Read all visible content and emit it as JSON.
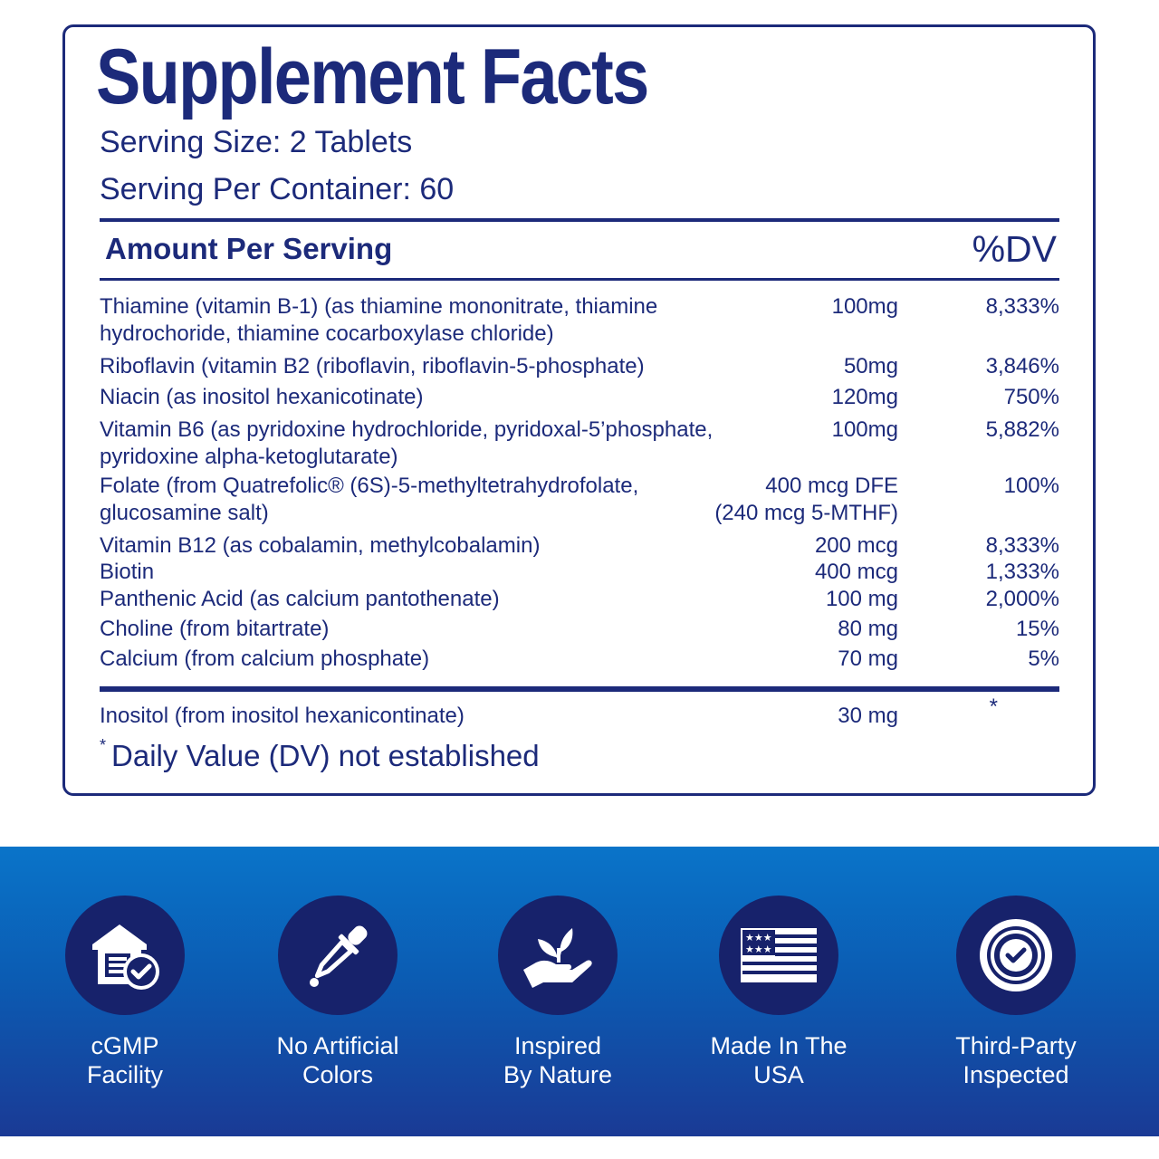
{
  "panel": {
    "title": "Supplement Facts",
    "serving_size": "Serving Size: 2 Tablets",
    "servings_per_container": "Serving Per Container: 60",
    "header_amount": "Amount Per Serving",
    "header_dv": "%DV",
    "nutrients": [
      {
        "name": "Thiamine (vitamin B-1) (as thiamine mononitrate, thiamine\nhydrochoride, thiamine cocarboxylase chloride)",
        "amount": "100mg",
        "dv": "8,333%"
      },
      {
        "name": "Riboflavin (vitamin B2 (riboflavin, riboflavin-5-phosphate)",
        "amount": "50mg",
        "dv": "3,846%"
      },
      {
        "name": "Niacin (as inositol hexanicotinate)",
        "amount": "120mg",
        "dv": "750%"
      },
      {
        "name": "Vitamin B6 (as pyridoxine hydrochloride, pyridoxal-5’phosphate,\npyridoxine alpha-ketoglutarate)",
        "amount": "100mg",
        "dv": "5,882%"
      },
      {
        "name": "Folate (from Quatrefolic® (6S)-5-methyltetrahydrofolate,\nglucosamine salt)",
        "amount": "400 mcg DFE\n(240 mcg 5-MTHF)",
        "dv": "100%"
      },
      {
        "name": "Vitamin B12 (as cobalamin, methylcobalamin)",
        "amount": "200 mcg",
        "dv": "8,333%"
      },
      {
        "name": "Biotin",
        "amount": "400 mcg",
        "dv": "1,333%"
      },
      {
        "name": "Panthenic Acid (as calcium pantothenate)",
        "amount": "100 mg",
        "dv": "2,000%"
      },
      {
        "name": "Choline (from bitartrate)",
        "amount": "80 mg",
        "dv": "15%"
      },
      {
        "name": "Calcium (from calcium phosphate)",
        "amount": "70 mg",
        "dv": "5%"
      },
      {
        "name": "Inositol (from inositol hexanicontinate)",
        "amount": "30 mg",
        "dv": "*"
      }
    ],
    "footnote_star": "*",
    "footnote_text": "Daily Value (DV) not established"
  },
  "badges": [
    {
      "icon": "facility-check-icon",
      "label": "cGMP\nFacility"
    },
    {
      "icon": "dropper-icon",
      "label": "No Artificial\nColors"
    },
    {
      "icon": "plant-hand-icon",
      "label": "Inspired\nBy Nature"
    },
    {
      "icon": "usa-flag-icon",
      "label": "Made In The\nUSA"
    },
    {
      "icon": "seal-check-icon",
      "label": "Third-Party\nInspected"
    }
  ],
  "colors": {
    "navy": "#1c2a7a",
    "banner_top": "#0a74c9",
    "banner_bottom": "#1a3a95",
    "badge_circle": "#17226b"
  }
}
